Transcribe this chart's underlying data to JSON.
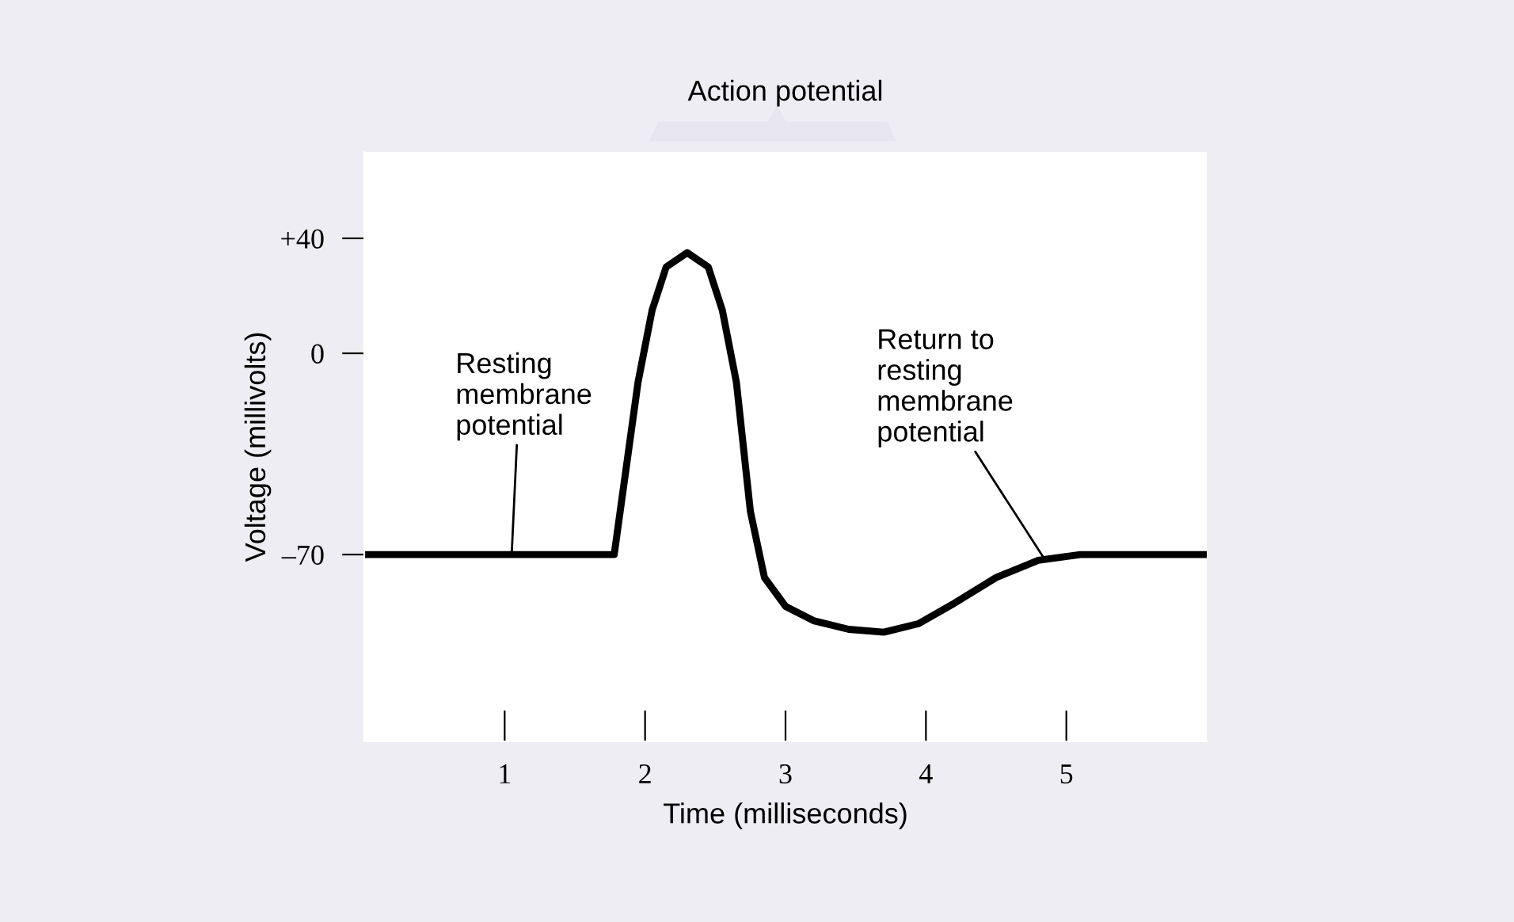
{
  "chart_data": {
    "type": "line",
    "xlabel": "Time (milliseconds)",
    "ylabel": "Voltage (millivolts)",
    "x": [
      0,
      1.78,
      1.95,
      2.05,
      2.15,
      2.3,
      2.45,
      2.55,
      2.65,
      2.75,
      2.85,
      3.0,
      3.2,
      3.45,
      3.7,
      3.95,
      4.2,
      4.5,
      4.8,
      5.1,
      6.0
    ],
    "series": [
      {
        "color": "#000000",
        "values": [
          -70,
          -70,
          -10,
          15,
          30,
          35,
          30,
          15,
          -10,
          -55,
          -78,
          -88,
          -93,
          -96,
          -97,
          -94,
          -87,
          -78,
          -72,
          -70,
          -70
        ]
      }
    ],
    "xlim": [
      0,
      6
    ],
    "xticks": [
      1,
      2,
      3,
      4,
      5
    ],
    "ylim": [
      -135,
      70
    ],
    "yticks": [
      {
        "value": 40,
        "label": "+40"
      },
      0,
      {
        "value": -70,
        "label": "–70"
      }
    ],
    "grid": false,
    "legend": false,
    "marker": "none",
    "line_style": "solid",
    "annotations": [
      "Action potential",
      {
        "text": "Resting\nmembrane\npotential",
        "x": 1.05,
        "y": -70
      },
      {
        "text": "Return to\nresting\nmembrane\npotential",
        "x": 4.85,
        "y": -72
      }
    ]
  }
}
